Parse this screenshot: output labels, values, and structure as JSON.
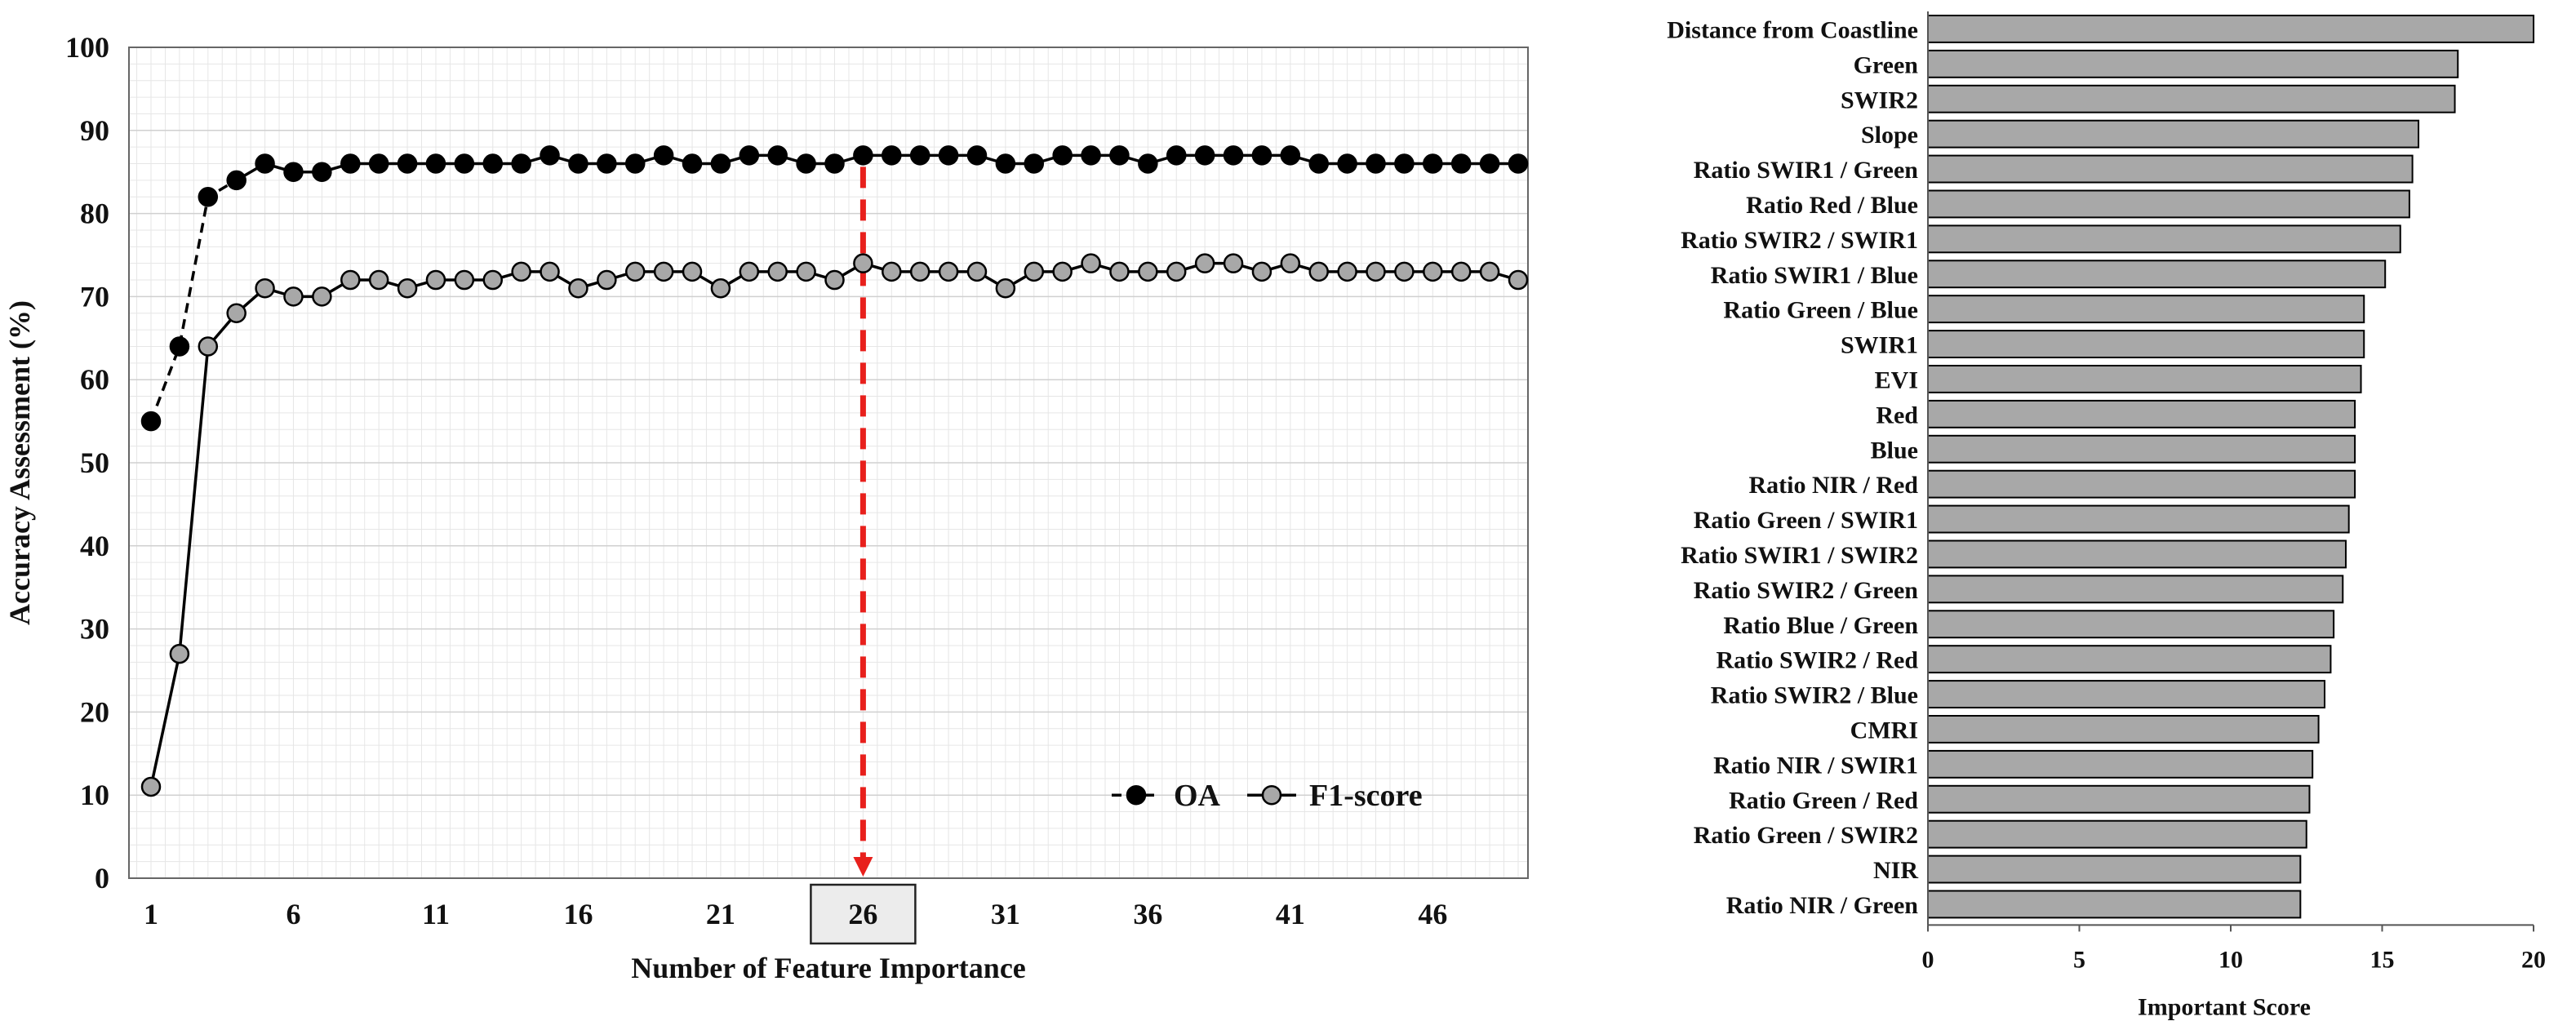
{
  "colors": {
    "oa_marker": "#000000",
    "f1_marker": "#a8a8a8",
    "bar_fill": "#a8a8a8",
    "highlight_line": "#e8201c",
    "highlight_box": "#ececec"
  },
  "chart_data": [
    {
      "type": "line",
      "xlabel": "Number of Feature Importance",
      "ylabel": "Accuracy Assessment (%)",
      "ylim": [
        0,
        100
      ],
      "xlim": [
        1,
        49
      ],
      "xticks": [
        "1",
        "6",
        "11",
        "16",
        "21",
        "26",
        "31",
        "36",
        "41",
        "46"
      ],
      "yticks": [
        "0",
        "10",
        "20",
        "30",
        "40",
        "50",
        "60",
        "70",
        "80",
        "90",
        "100"
      ],
      "highlight_x": 26,
      "highlight_label": "26",
      "grid": true,
      "legend_position": "bottom-right",
      "series": [
        {
          "name": "OA",
          "style": "dashed-black-filled",
          "x": [
            1,
            2,
            3,
            4,
            5,
            6,
            7,
            8,
            9,
            10,
            11,
            12,
            13,
            14,
            15,
            16,
            17,
            18,
            19,
            20,
            21,
            22,
            23,
            24,
            25,
            26,
            27,
            28,
            29,
            30,
            31,
            32,
            33,
            34,
            35,
            36,
            37,
            38,
            39,
            40,
            41,
            42,
            43,
            44,
            45,
            46,
            47,
            48,
            49
          ],
          "values": [
            55,
            64,
            82,
            84,
            86,
            85,
            85,
            86,
            86,
            86,
            86,
            86,
            86,
            86,
            87,
            86,
            86,
            86,
            87,
            86,
            86,
            87,
            87,
            86,
            86,
            87,
            87,
            87,
            87,
            87,
            86,
            86,
            87,
            87,
            87,
            86,
            87,
            87,
            87,
            87,
            87,
            86,
            86,
            86,
            86,
            86,
            86,
            86,
            86
          ]
        },
        {
          "name": "F1-score",
          "style": "solid-black-gray",
          "x": [
            1,
            2,
            3,
            4,
            5,
            6,
            7,
            8,
            9,
            10,
            11,
            12,
            13,
            14,
            15,
            16,
            17,
            18,
            19,
            20,
            21,
            22,
            23,
            24,
            25,
            26,
            27,
            28,
            29,
            30,
            31,
            32,
            33,
            34,
            35,
            36,
            37,
            38,
            39,
            40,
            41,
            42,
            43,
            44,
            45,
            46,
            47,
            48,
            49
          ],
          "values": [
            11,
            27,
            64,
            68,
            71,
            70,
            70,
            72,
            72,
            71,
            72,
            72,
            72,
            73,
            73,
            71,
            72,
            73,
            73,
            73,
            71,
            73,
            73,
            73,
            72,
            74,
            73,
            73,
            73,
            73,
            71,
            73,
            73,
            74,
            73,
            73,
            73,
            74,
            74,
            73,
            74,
            73,
            73,
            73,
            73,
            73,
            73,
            73,
            72
          ]
        }
      ]
    },
    {
      "type": "bar",
      "orientation": "horizontal",
      "xlabel": "Important Score",
      "ylabel": "",
      "xlim": [
        0,
        20
      ],
      "xticks": [
        "0",
        "5",
        "10",
        "15",
        "20"
      ],
      "categories": [
        "Distance from Coastline",
        "Green",
        "SWIR2",
        "Slope",
        "Ratio SWIR1 / Green",
        "Ratio Red / Blue",
        "Ratio SWIR2 / SWIR1",
        "Ratio SWIR1 / Blue",
        "Ratio Green / Blue",
        "SWIR1",
        "EVI",
        "Red",
        "Blue",
        "Ratio NIR / Red",
        "Ratio Green / SWIR1",
        "Ratio SWIR1 / SWIR2",
        "Ratio SWIR2 / Green",
        "Ratio Blue / Green",
        "Ratio SWIR2 / Red",
        "Ratio SWIR2 / Blue",
        "CMRI",
        "Ratio NIR / SWIR1",
        "Ratio Green / Red",
        "Ratio Green / SWIR2",
        "NIR",
        "Ratio NIR / Green"
      ],
      "values": [
        20.0,
        17.5,
        17.4,
        16.2,
        16.0,
        15.9,
        15.6,
        15.1,
        14.4,
        14.4,
        14.3,
        14.1,
        14.1,
        14.1,
        13.9,
        13.8,
        13.7,
        13.4,
        13.3,
        13.1,
        12.9,
        12.7,
        12.6,
        12.5,
        12.3,
        12.3
      ]
    }
  ]
}
